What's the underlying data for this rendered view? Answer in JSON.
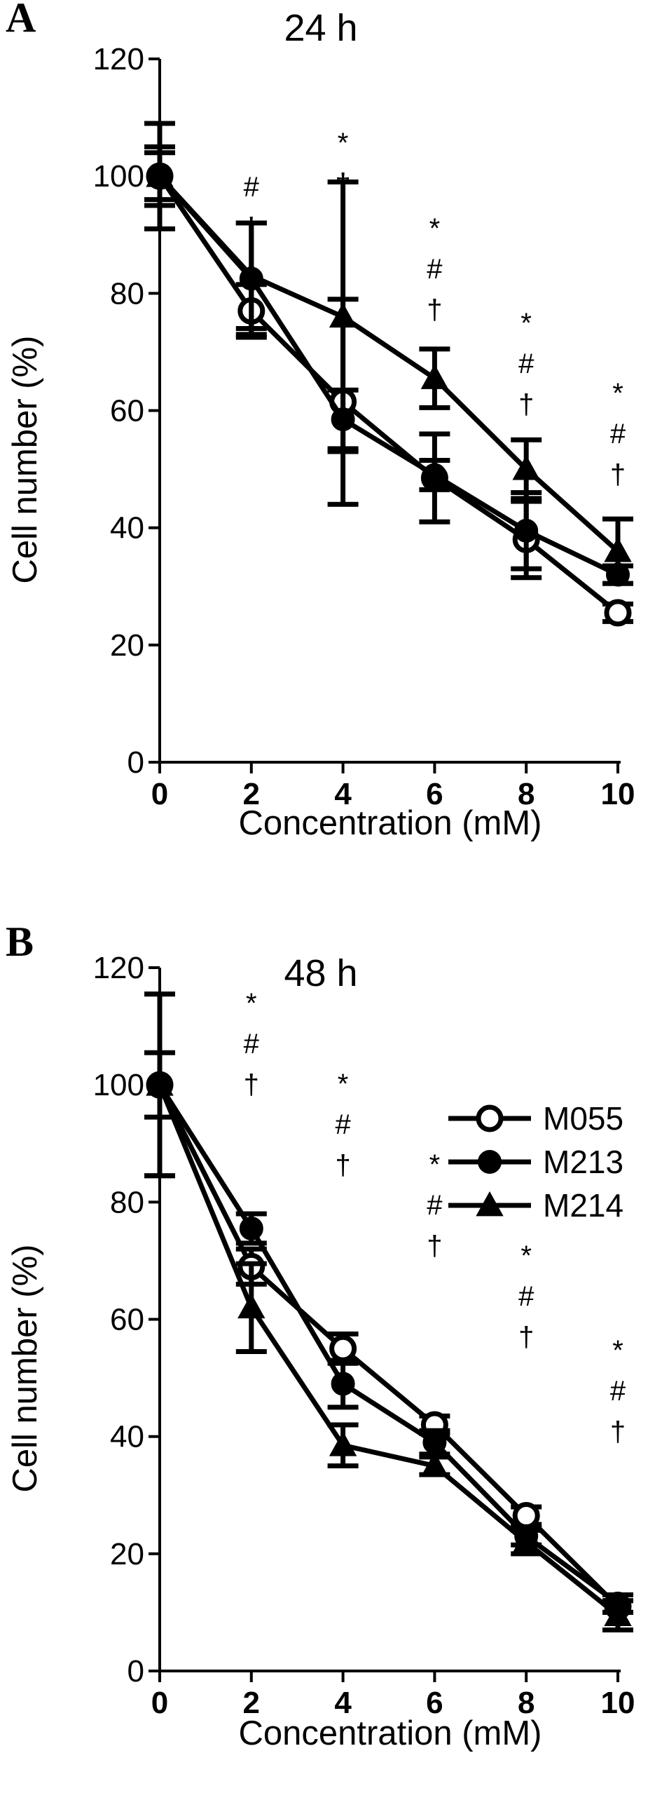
{
  "chart_data": [
    {
      "panel": "A",
      "type": "line",
      "title": "24 h",
      "xlabel": "Concentration (mM)",
      "ylabel": "Cell number (%)",
      "x": [
        0,
        2,
        4,
        6,
        8,
        10
      ],
      "xlim": [
        0,
        10
      ],
      "ylim": [
        0,
        120
      ],
      "yticks": [
        0,
        20,
        40,
        60,
        80,
        100,
        120
      ],
      "grid": false,
      "series": [
        {
          "name": "M055",
          "marker": "open-circle",
          "values": [
            100,
            77,
            61.5,
            48.5,
            38,
            25.5
          ],
          "errors": [
            5,
            4.5,
            17.5,
            7.5,
            6.5,
            1.5
          ]
        },
        {
          "name": "M213",
          "marker": "filled-circle",
          "values": [
            100,
            82.5,
            58.5,
            49,
            39.5,
            32
          ],
          "errors": [
            4,
            9.5,
            5,
            2.5,
            6.5,
            1.5
          ]
        },
        {
          "name": "M214",
          "marker": "filled-triangle",
          "values": [
            100,
            83,
            76,
            65.5,
            50,
            36
          ],
          "errors": [
            9,
            9,
            23,
            5,
            5,
            5.5
          ]
        }
      ],
      "annotations": [
        {
          "x": 2,
          "symbols": [
            "#",
            "†"
          ]
        },
        {
          "x": 4,
          "symbols": [
            "*",
            "†"
          ]
        },
        {
          "x": 6,
          "symbols": [
            "*",
            "#",
            "†"
          ]
        },
        {
          "x": 8,
          "symbols": [
            "*",
            "#",
            "†"
          ]
        },
        {
          "x": 10,
          "symbols": [
            "*",
            "#",
            "†"
          ]
        }
      ]
    },
    {
      "panel": "B",
      "type": "line",
      "title": "48 h",
      "xlabel": "Concentration (mM)",
      "ylabel": "Cell number (%)",
      "x": [
        0,
        2,
        4,
        6,
        8,
        10
      ],
      "xlim": [
        0,
        10
      ],
      "ylim": [
        0,
        120
      ],
      "yticks": [
        0,
        20,
        40,
        60,
        80,
        100,
        120
      ],
      "grid": false,
      "legend_position": "top-right",
      "series": [
        {
          "name": "M055",
          "marker": "open-circle",
          "values": [
            100,
            69,
            55,
            42,
            26.5,
            11
          ],
          "errors": [
            15.5,
            3,
            2.5,
            1.5,
            1.5,
            1
          ]
        },
        {
          "name": "M213",
          "marker": "filled-circle",
          "values": [
            100,
            75.5,
            49,
            39,
            23,
            11.5
          ],
          "errors": [
            5.5,
            2.5,
            4,
            2,
            1.5,
            1.5
          ]
        },
        {
          "name": "M214",
          "marker": "filled-triangle",
          "values": [
            100,
            62,
            38.5,
            35,
            22,
            9.5
          ],
          "errors": [
            15.5,
            7.5,
            3.5,
            1.5,
            2,
            2.5
          ]
        }
      ],
      "annotations": [
        {
          "x": 2,
          "symbols": [
            "*",
            "#",
            "†"
          ]
        },
        {
          "x": 4,
          "symbols": [
            "*",
            "#",
            "†"
          ]
        },
        {
          "x": 6,
          "symbols": [
            "*",
            "#",
            "†"
          ]
        },
        {
          "x": 8,
          "symbols": [
            "*",
            "#",
            "†"
          ]
        },
        {
          "x": 10,
          "symbols": [
            "*",
            "#",
            "†"
          ]
        }
      ]
    }
  ]
}
